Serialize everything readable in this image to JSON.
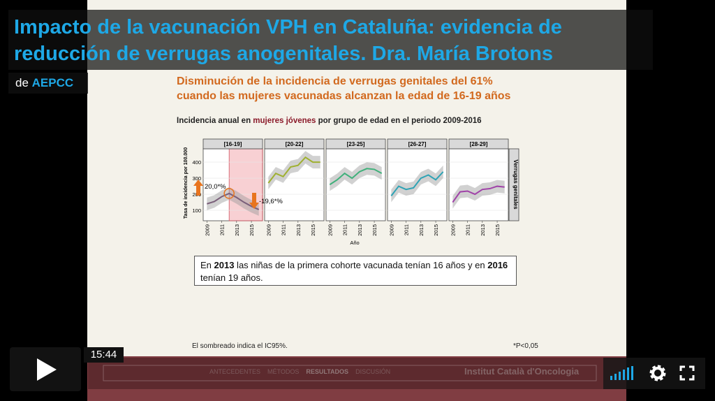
{
  "video_title": {
    "line1": "Impacto de la vacunación VPH en Cataluña: evidencia de",
    "line2": "reducción de verrugas anogenitales. Dra. María Brotons"
  },
  "byline": {
    "prefix": "de",
    "author": "AEPCC"
  },
  "slide": {
    "heading": [
      "Disminución de la incidencia de verrugas genitales del 61%",
      "cuando las mujeres vacunadas alcanzan la edad de 16-19 años"
    ],
    "subtitle": {
      "before": "Incidencia anual en ",
      "highlight": "mujeres jóvenes",
      "after": " por grupo de edad en el periodo 2009-2016"
    },
    "note": [
      "En ",
      "2013",
      " las niñas de la primera cohorte vacunada tenían 16 años y en ",
      "2016",
      "tenían 19 años."
    ],
    "footnote_left": "El sombreado indica el IC95%.",
    "footnote_right": "*P<0,05",
    "nav": [
      "ANTECEDENTES",
      "MÉTODOS",
      "RESULTADOS",
      "DISCUSIÓN"
    ],
    "institution": "Institut Català d'Oncologia"
  },
  "chart_data": {
    "type": "line",
    "y_label": "Tasa de incidencia por 100.000",
    "x_label": "Año",
    "strip_right": "Verrugas genitales",
    "x": [
      2009,
      2010,
      2011,
      2012,
      2013,
      2014,
      2015,
      2016
    ],
    "xlim": [
      2008.5,
      2016.5
    ],
    "xticks": [
      2009,
      2011,
      2013,
      2015
    ],
    "ylim": [
      35,
      483
    ],
    "yticks": [
      100,
      200,
      300,
      400
    ],
    "annotations": [
      "20,0*%",
      "-19,6*%"
    ],
    "series": [
      {
        "name": "[16-19]",
        "color": "#7a5f7a",
        "values": [
          140,
          155,
          185,
          205,
          180,
          150,
          125,
          105
        ]
      },
      {
        "name": "[20-22]",
        "color": "#9fb030",
        "values": [
          270,
          330,
          310,
          370,
          380,
          430,
          400,
          400
        ]
      },
      {
        "name": "[23-25]",
        "color": "#3fb07a",
        "values": [
          260,
          290,
          330,
          300,
          340,
          360,
          355,
          330
        ]
      },
      {
        "name": "[26-27]",
        "color": "#2ea3b5",
        "values": [
          190,
          250,
          230,
          240,
          300,
          320,
          290,
          340
        ]
      },
      {
        "name": "[28-29]",
        "color": "#a043a8",
        "values": [
          150,
          215,
          220,
          200,
          230,
          235,
          250,
          245
        ]
      }
    ]
  },
  "player": {
    "time": "15:44"
  }
}
